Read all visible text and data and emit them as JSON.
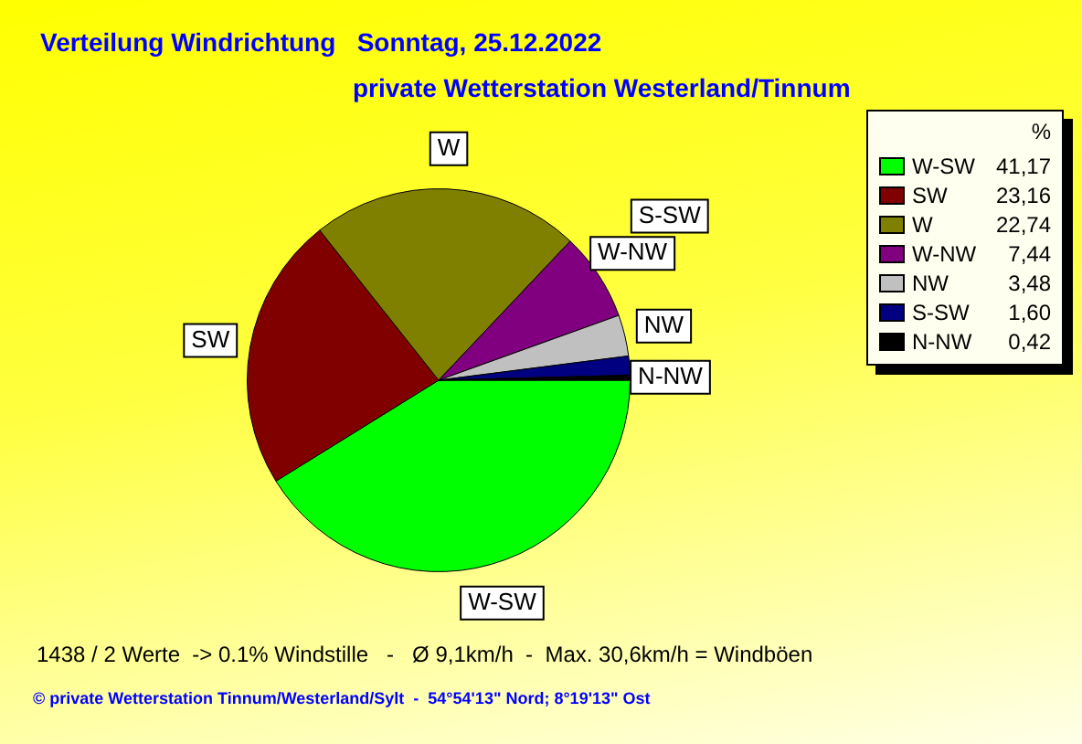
{
  "chart_data": {
    "type": "pie",
    "title": "Verteilung Windrichtung   Sonntag, 25.12.2022",
    "subtitle": "private Wetterstation Westerland/Tinnum",
    "legend_title": "%",
    "legend": "top right",
    "categories": [
      "W-SW",
      "SW",
      "W",
      "W-NW",
      "NW",
      "S-SW",
      "N-NW"
    ],
    "values": [
      41.17,
      23.16,
      22.74,
      7.44,
      3.48,
      1.6,
      0.42
    ],
    "value_labels": [
      "41,17",
      "23,16",
      "22,74",
      "7,44",
      "3,48",
      "1,60",
      "0,42"
    ],
    "colors": [
      "#00ff00",
      "#800000",
      "#808000",
      "#800080",
      "#c0c0c0",
      "#000080",
      "#000000"
    ],
    "annotations": [
      "1438 / 2 Werte  -> 0.1% Windstille   -   Ø 9,1km/h  -  Max. 30,6km/h = Windböen",
      "© private Wetterstation Tinnum/Westerland/Sylt  -  54°54'13\" Nord; 8°19'13\" Ost"
    ]
  }
}
